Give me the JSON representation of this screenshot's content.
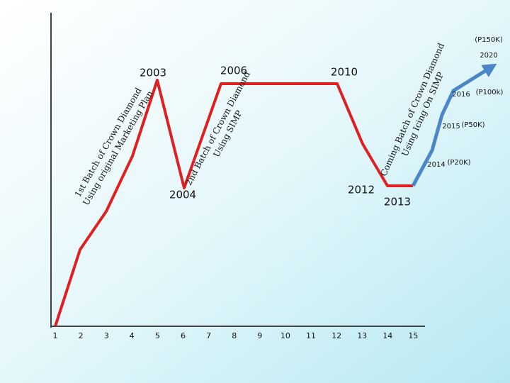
{
  "x_labels": [
    "1",
    "2",
    "3",
    "4",
    "5",
    "6",
    "7",
    "8",
    "9",
    "10",
    "11",
    "12",
    "13",
    "14",
    "15"
  ],
  "year_labels": {
    "y2003": "2003",
    "y2004": "2004",
    "y2006": "2006",
    "y2010": "2010",
    "y2012": "2012",
    "y2013": "2013"
  },
  "targets": {
    "top": "(P150K)",
    "y2020": "2020",
    "y2016": "2016",
    "p100k": "(P100k)",
    "y2015": "2015",
    "p50k": "(P50K)",
    "y2014": "2014",
    "p20k": "(P20K)"
  },
  "notes": [
    {
      "line1": "1st Batch of Crown Diamond",
      "line2": "Using original Marketing Plan"
    },
    {
      "line1": "2nd Batch of Crown Diamond",
      "line2": "Using SIMP"
    },
    {
      "line1": "Coming Batch of Crown Diamond",
      "line2": "Using Icing On SIMP"
    }
  ]
}
